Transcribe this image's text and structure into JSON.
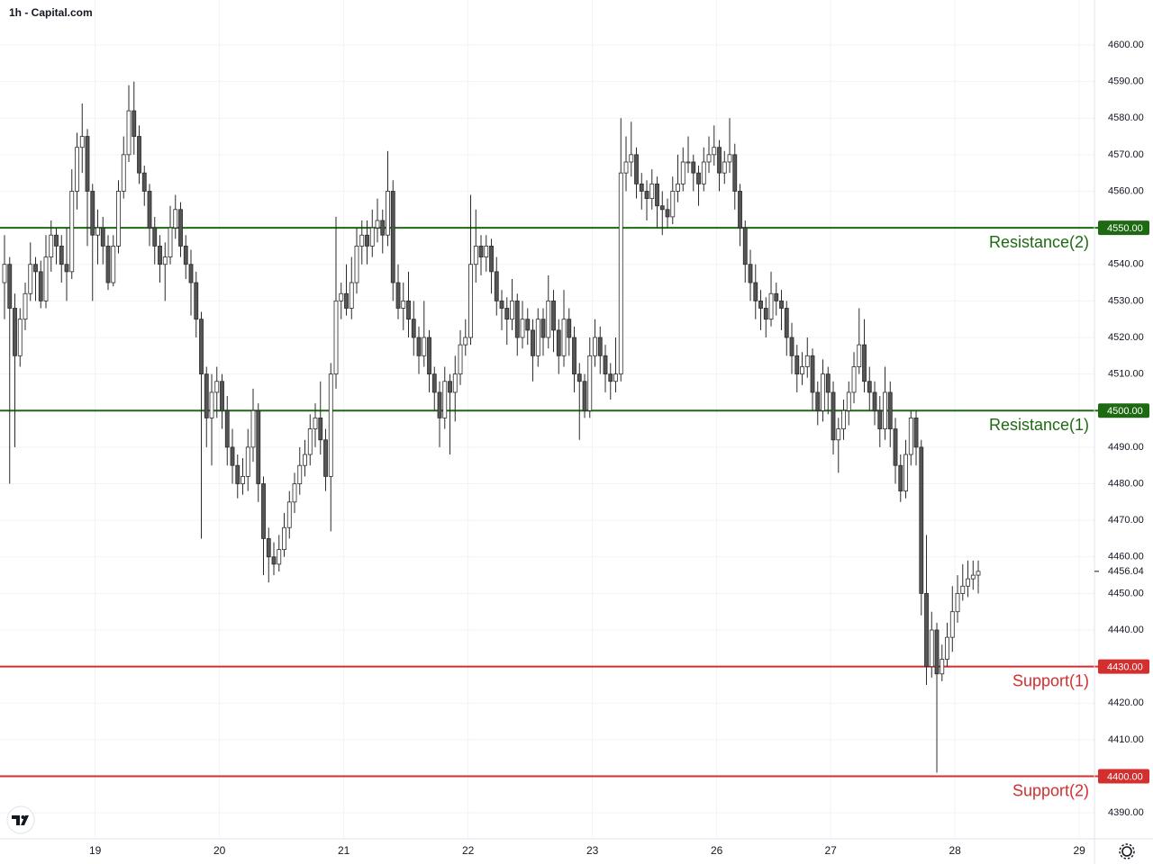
{
  "chart_data": {
    "type": "candlestick",
    "title": "1h - Capital.com",
    "up_color": "#ffffff",
    "down_color": "#555555",
    "outline_color": "#2a2a2a",
    "grid": true,
    "xlim": [
      -0.87,
      210.43
    ],
    "xticks": [
      {
        "value": 17.5,
        "label": "19"
      },
      {
        "value": 41.5,
        "label": "20"
      },
      {
        "value": 65.5,
        "label": "21"
      },
      {
        "value": 89.5,
        "label": "22"
      },
      {
        "value": 113.5,
        "label": "23"
      },
      {
        "value": 137.5,
        "label": "26"
      },
      {
        "value": 159.5,
        "label": "27"
      },
      {
        "value": 183.5,
        "label": "28"
      },
      {
        "value": 207.5,
        "label": "29"
      }
    ],
    "ylim": [
      4382.9,
      4612.3
    ],
    "yticks": [
      {
        "value": 4390,
        "label": "4390.00"
      },
      {
        "value": 4410,
        "label": "4410.00"
      },
      {
        "value": 4420,
        "label": "4420.00"
      },
      {
        "value": 4440,
        "label": "4440.00"
      },
      {
        "value": 4450,
        "label": "4450.00"
      },
      {
        "value": 4460,
        "label": "4460.00"
      },
      {
        "value": 4470,
        "label": "4470.00"
      },
      {
        "value": 4480,
        "label": "4480.00"
      },
      {
        "value": 4490,
        "label": "4490.00"
      },
      {
        "value": 4510,
        "label": "4510.00"
      },
      {
        "value": 4520,
        "label": "4520.00"
      },
      {
        "value": 4530,
        "label": "4530.00"
      },
      {
        "value": 4540,
        "label": "4540.00"
      },
      {
        "value": 4560,
        "label": "4560.00"
      },
      {
        "value": 4570,
        "label": "4570.00"
      },
      {
        "value": 4580,
        "label": "4580.00"
      },
      {
        "value": 4590,
        "label": "4590.00"
      },
      {
        "value": 4600,
        "label": "4600.00"
      }
    ],
    "last_price": 4456.04,
    "levels": [
      {
        "name": "Resistance(2)",
        "value": 4550,
        "label": "4550.00",
        "color": "#1e6a12"
      },
      {
        "name": "Resistance(1)",
        "value": 4500,
        "label": "4500.00",
        "color": "#1e6a12"
      },
      {
        "name": "Support(1)",
        "value": 4430,
        "label": "4430.00",
        "color": "#d32f2f"
      },
      {
        "name": "Support(2)",
        "value": 4400,
        "label": "4400.00",
        "color": "#d32f2f"
      }
    ],
    "candles": [
      [
        4535,
        4548,
        4525,
        4540
      ],
      [
        4540,
        4542,
        4480,
        4528
      ],
      [
        4528,
        4532,
        4490,
        4515
      ],
      [
        4515,
        4528,
        4512,
        4525
      ],
      [
        4525,
        4535,
        4522,
        4532
      ],
      [
        4532,
        4546,
        4530,
        4540
      ],
      [
        4540,
        4542,
        4530,
        4538
      ],
      [
        4538,
        4541,
        4528,
        4530
      ],
      [
        4530,
        4548,
        4528,
        4542
      ],
      [
        4542,
        4552,
        4538,
        4548
      ],
      [
        4548,
        4550,
        4540,
        4545
      ],
      [
        4545,
        4548,
        4535,
        4540
      ],
      [
        4540,
        4550,
        4530,
        4538
      ],
      [
        4538,
        4566,
        4536,
        4560
      ],
      [
        4560,
        4576,
        4555,
        4572
      ],
      [
        4572,
        4584,
        4565,
        4575
      ],
      [
        4575,
        4577,
        4545,
        4560
      ],
      [
        4560,
        4562,
        4530,
        4548
      ],
      [
        4548,
        4555,
        4540,
        4550
      ],
      [
        4550,
        4553,
        4540,
        4545
      ],
      [
        4545,
        4548,
        4533,
        4535
      ],
      [
        4535,
        4548,
        4534,
        4545
      ],
      [
        4545,
        4563,
        4543,
        4560
      ],
      [
        4560,
        4575,
        4558,
        4570
      ],
      [
        4570,
        4589,
        4568,
        4582
      ],
      [
        4582,
        4590,
        4570,
        4575
      ],
      [
        4575,
        4578,
        4562,
        4565
      ],
      [
        4565,
        4567,
        4556,
        4560
      ],
      [
        4560,
        4562,
        4545,
        4550
      ],
      [
        4550,
        4553,
        4540,
        4545
      ],
      [
        4545,
        4548,
        4535,
        4540
      ],
      [
        4540,
        4546,
        4530,
        4542
      ],
      [
        4542,
        4556,
        4540,
        4550
      ],
      [
        4550,
        4559,
        4547,
        4555
      ],
      [
        4555,
        4557,
        4542,
        4545
      ],
      [
        4545,
        4548,
        4536,
        4540
      ],
      [
        4540,
        4544,
        4526,
        4535
      ],
      [
        4535,
        4538,
        4520,
        4525
      ],
      [
        4525,
        4527,
        4465,
        4510
      ],
      [
        4510,
        4512,
        4490,
        4498
      ],
      [
        4498,
        4510,
        4485,
        4505
      ],
      [
        4505,
        4512,
        4498,
        4508
      ],
      [
        4508,
        4510,
        4495,
        4500
      ],
      [
        4500,
        4504,
        4485,
        4490
      ],
      [
        4490,
        4495,
        4480,
        4485
      ],
      [
        4485,
        4488,
        4476,
        4480
      ],
      [
        4480,
        4487,
        4477,
        4482
      ],
      [
        4482,
        4495,
        4478,
        4490
      ],
      [
        4490,
        4506,
        4486,
        4500
      ],
      [
        4500,
        4502,
        4475,
        4480
      ],
      [
        4480,
        4482,
        4455,
        4465
      ],
      [
        4465,
        4468,
        4453,
        4460
      ],
      [
        4460,
        4464,
        4455,
        4458
      ],
      [
        4458,
        4466,
        4456,
        4462
      ],
      [
        4462,
        4472,
        4460,
        4468
      ],
      [
        4468,
        4478,
        4465,
        4475
      ],
      [
        4475,
        4483,
        4472,
        4480
      ],
      [
        4480,
        4490,
        4477,
        4485
      ],
      [
        4485,
        4492,
        4482,
        4488
      ],
      [
        4488,
        4499,
        4485,
        4495
      ],
      [
        4495,
        4502,
        4490,
        4498
      ],
      [
        4498,
        4508,
        4488,
        4492
      ],
      [
        4492,
        4495,
        4478,
        4482
      ],
      [
        4482,
        4513,
        4467,
        4510
      ],
      [
        4510,
        4553,
        4506,
        4530
      ],
      [
        4530,
        4535,
        4525,
        4532
      ],
      [
        4532,
        4540,
        4526,
        4528
      ],
      [
        4528,
        4542,
        4525,
        4535
      ],
      [
        4535,
        4550,
        4532,
        4545
      ],
      [
        4545,
        4552,
        4540,
        4548
      ],
      [
        4548,
        4552,
        4540,
        4545
      ],
      [
        4545,
        4555,
        4542,
        4550
      ],
      [
        4550,
        4558,
        4546,
        4552
      ],
      [
        4552,
        4555,
        4543,
        4548
      ],
      [
        4548,
        4571,
        4545,
        4560
      ],
      [
        4560,
        4563,
        4530,
        4535
      ],
      [
        4535,
        4540,
        4525,
        4528
      ],
      [
        4528,
        4535,
        4522,
        4530
      ],
      [
        4530,
        4538,
        4520,
        4525
      ],
      [
        4525,
        4530,
        4515,
        4520
      ],
      [
        4520,
        4523,
        4510,
        4515
      ],
      [
        4515,
        4530,
        4512,
        4520
      ],
      [
        4520,
        4522,
        4505,
        4510
      ],
      [
        4510,
        4512,
        4500,
        4505
      ],
      [
        4505,
        4508,
        4490,
        4498
      ],
      [
        4498,
        4512,
        4495,
        4508
      ],
      [
        4508,
        4510,
        4488,
        4505
      ],
      [
        4505,
        4515,
        4497,
        4510
      ],
      [
        4510,
        4522,
        4507,
        4518
      ],
      [
        4518,
        4525,
        4515,
        4520
      ],
      [
        4520,
        4559,
        4518,
        4540
      ],
      [
        4540,
        4555,
        4535,
        4545
      ],
      [
        4545,
        4548,
        4537,
        4542
      ],
      [
        4542,
        4548,
        4538,
        4545
      ],
      [
        4545,
        4547,
        4532,
        4538
      ],
      [
        4538,
        4542,
        4526,
        4530
      ],
      [
        4530,
        4533,
        4522,
        4528
      ],
      [
        4528,
        4531,
        4518,
        4525
      ],
      [
        4525,
        4536,
        4522,
        4530
      ],
      [
        4530,
        4532,
        4515,
        4520
      ],
      [
        4520,
        4530,
        4517,
        4525
      ],
      [
        4525,
        4528,
        4518,
        4522
      ],
      [
        4522,
        4525,
        4508,
        4515
      ],
      [
        4515,
        4528,
        4512,
        4525
      ],
      [
        4525,
        4528,
        4515,
        4520
      ],
      [
        4520,
        4537,
        4517,
        4530
      ],
      [
        4530,
        4533,
        4516,
        4522
      ],
      [
        4522,
        4525,
        4510,
        4515
      ],
      [
        4515,
        4533,
        4512,
        4525
      ],
      [
        4525,
        4528,
        4515,
        4520
      ],
      [
        4520,
        4523,
        4505,
        4510
      ],
      [
        4510,
        4513,
        4492,
        4508
      ],
      [
        4508,
        4510,
        4498,
        4500
      ],
      [
        4500,
        4520,
        4498,
        4515
      ],
      [
        4515,
        4525,
        4512,
        4520
      ],
      [
        4520,
        4523,
        4510,
        4515
      ],
      [
        4515,
        4518,
        4505,
        4510
      ],
      [
        4510,
        4513,
        4503,
        4508
      ],
      [
        4508,
        4520,
        4505,
        4510
      ],
      [
        4510,
        4580,
        4508,
        4565
      ],
      [
        4565,
        4575,
        4560,
        4568
      ],
      [
        4568,
        4579,
        4564,
        4570
      ],
      [
        4570,
        4572,
        4558,
        4562
      ],
      [
        4562,
        4565,
        4555,
        4560
      ],
      [
        4560,
        4563,
        4552,
        4558
      ],
      [
        4558,
        4566,
        4555,
        4562
      ],
      [
        4562,
        4564,
        4550,
        4556
      ],
      [
        4556,
        4560,
        4548,
        4555
      ],
      [
        4555,
        4558,
        4550,
        4553
      ],
      [
        4553,
        4564,
        4551,
        4560
      ],
      [
        4560,
        4570,
        4557,
        4562
      ],
      [
        4562,
        4572,
        4560,
        4568
      ],
      [
        4568,
        4575,
        4565,
        4568
      ],
      [
        4568,
        4570,
        4560,
        4565
      ],
      [
        4565,
        4567,
        4556,
        4562
      ],
      [
        4562,
        4572,
        4560,
        4568
      ],
      [
        4568,
        4575,
        4565,
        4570
      ],
      [
        4570,
        4578,
        4567,
        4572
      ],
      [
        4572,
        4574,
        4560,
        4565
      ],
      [
        4565,
        4571,
        4562,
        4568
      ],
      [
        4568,
        4580,
        4565,
        4570
      ],
      [
        4570,
        4573,
        4555,
        4560
      ],
      [
        4560,
        4562,
        4545,
        4550
      ],
      [
        4550,
        4552,
        4535,
        4540
      ],
      [
        4540,
        4544,
        4530,
        4535
      ],
      [
        4535,
        4540,
        4525,
        4530
      ],
      [
        4530,
        4533,
        4522,
        4528
      ],
      [
        4528,
        4531,
        4520,
        4525
      ],
      [
        4525,
        4538,
        4523,
        4532
      ],
      [
        4532,
        4535,
        4526,
        4530
      ],
      [
        4530,
        4533,
        4522,
        4528
      ],
      [
        4528,
        4530,
        4515,
        4520
      ],
      [
        4520,
        4524,
        4510,
        4515
      ],
      [
        4515,
        4518,
        4505,
        4510
      ],
      [
        4510,
        4516,
        4507,
        4512
      ],
      [
        4512,
        4520,
        4509,
        4515
      ],
      [
        4515,
        4517,
        4500,
        4505
      ],
      [
        4505,
        4508,
        4496,
        4500
      ],
      [
        4500,
        4514,
        4497,
        4510
      ],
      [
        4510,
        4512,
        4499,
        4505
      ],
      [
        4505,
        4508,
        4488,
        4492
      ],
      [
        4492,
        4498,
        4483,
        4495
      ],
      [
        4495,
        4503,
        4492,
        4500
      ],
      [
        4500,
        4508,
        4496,
        4505
      ],
      [
        4505,
        4516,
        4502,
        4512
      ],
      [
        4512,
        4528,
        4510,
        4518
      ],
      [
        4518,
        4525,
        4505,
        4508
      ],
      [
        4508,
        4512,
        4500,
        4505
      ],
      [
        4505,
        4508,
        4496,
        4500
      ],
      [
        4500,
        4504,
        4490,
        4495
      ],
      [
        4495,
        4512,
        4492,
        4505
      ],
      [
        4505,
        4508,
        4490,
        4495
      ],
      [
        4495,
        4498,
        4480,
        4485
      ],
      [
        4485,
        4488,
        4475,
        4478
      ],
      [
        4478,
        4492,
        4476,
        4488
      ],
      [
        4488,
        4500,
        4485,
        4498
      ],
      [
        4498,
        4500,
        4485,
        4490
      ],
      [
        4490,
        4492,
        4444,
        4450
      ],
      [
        4450,
        4466,
        4425,
        4430
      ],
      [
        4430,
        4445,
        4427,
        4440
      ],
      [
        4440,
        4442,
        4401,
        4428
      ],
      [
        4428,
        4436,
        4426,
        4432
      ],
      [
        4432,
        4442,
        4430,
        4438
      ],
      [
        4438,
        4452,
        4434,
        4445
      ],
      [
        4445,
        4455,
        4442,
        4450
      ],
      [
        4450,
        4458,
        4448,
        4452
      ],
      [
        4452,
        4459,
        4449,
        4454
      ],
      [
        4454,
        4459,
        4451,
        4455
      ],
      [
        4455,
        4459,
        4450,
        4456.04
      ]
    ]
  }
}
